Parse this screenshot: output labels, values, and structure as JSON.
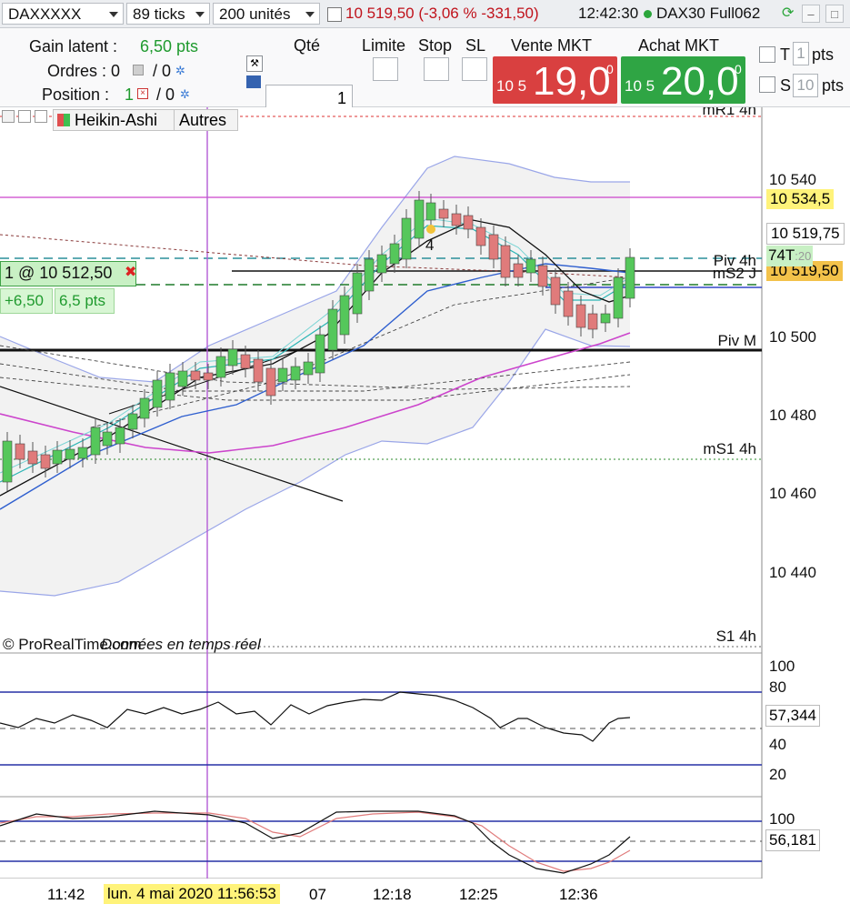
{
  "topbar": {
    "instrument": "DAXXXXX",
    "ticks": "89 ticks",
    "units": "200 unités",
    "quote": "10 519,50 (-3,06 % -331,50)",
    "time": "12:42:30",
    "contract": "DAX30 Full062"
  },
  "panel": {
    "gain_label": "Gain latent :",
    "gain_value": "6,50 pts",
    "orders_label": "Ordres : 0",
    "orders_sep": "/ 0",
    "position_label": "Position :",
    "position_value": "1",
    "position_sep": "/ 0",
    "qty_header": "Qté",
    "qty_value": "1",
    "limit_header": "Limite",
    "stop_header": "Stop",
    "sl_header": "SL",
    "sell_header": "Vente MKT",
    "buy_header": "Achat MKT",
    "sell_small": "10 5",
    "sell_big": "19,0",
    "sell_sup": "0",
    "buy_small": "10 5",
    "buy_big": "20,0",
    "buy_sup": "0",
    "t_label": "T",
    "t_value": "1",
    "s_label": "S",
    "s_value": "10",
    "pts": "pts"
  },
  "chart": {
    "style_label": "Heikin-Ashi",
    "others_label": "Autres",
    "position_tag": "1 @ 10 512,50",
    "gain_tag": "+6,50",
    "gain_pts_tag": "6,5 pts",
    "copyright": "© ProRealTime.com",
    "realtime": "Données en temps réel",
    "level_mr1": "mR1 4h",
    "level_piv4h": "Piv 4h",
    "level_ms2": "mS2 J",
    "level_pivm": "Piv M",
    "level_ms1": "mS1 4h",
    "level_s1": "S1 4h",
    "alert_count": "4",
    "tag_74t": "74T",
    "price_534": "10 534,5",
    "price_519_75": "10 519,75",
    "price_519_50": "10 519,50",
    "price_20_partial": ":20",
    "colors": {
      "bull": "#55c75b",
      "bear": "#e07b7b",
      "magenta": "#cc44cc",
      "blue": "#2f5fcf",
      "cyan": "#2bb5b5"
    }
  },
  "price_axis": [
    "10 540",
    "10 520",
    "10 500",
    "10 480",
    "10 460",
    "10 440"
  ],
  "rsi": {
    "ticks": [
      "100",
      "80",
      "40",
      "20"
    ],
    "value": "57,344"
  },
  "stoch": {
    "ticks": [
      "100"
    ],
    "value": "56,181"
  },
  "time_axis": [
    "11:42",
    "07",
    "12:18",
    "12:25",
    "12:36"
  ],
  "cursor_time": "lun. 4 mai 2020 11:56:53"
}
